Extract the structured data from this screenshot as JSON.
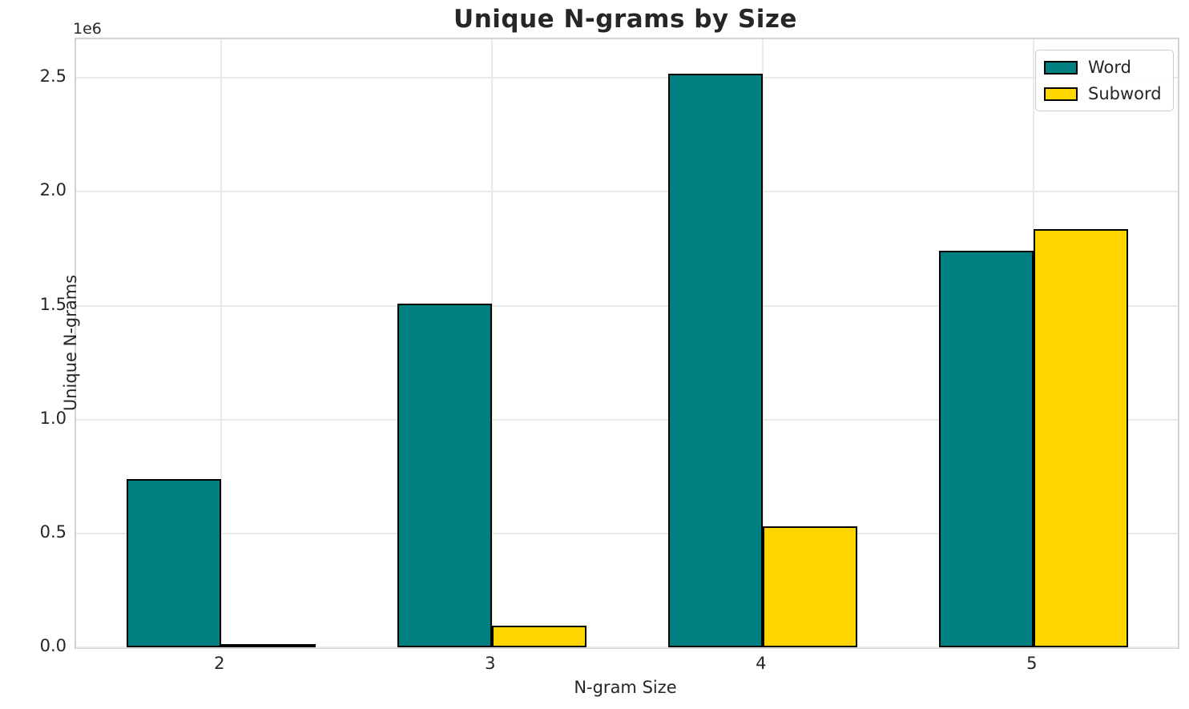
{
  "figure": {
    "title": "Unique N-grams by Size",
    "y_multiplier_label": "1e6"
  },
  "style": {
    "background": "#FFFFFF",
    "text_color": "#262626",
    "grid_color": "#EAEAEA",
    "spine_color": "#D2D2D2",
    "bar_edge_color": "#000000"
  },
  "chart_data": {
    "type": "bar",
    "title": "Unique N-grams by Size",
    "xlabel": "N-gram Size",
    "ylabel": "Unique N-grams",
    "categories": [
      "2",
      "3",
      "4",
      "5"
    ],
    "x": [
      2,
      3,
      4,
      5
    ],
    "series": [
      {
        "name": "Word",
        "color": "#008080",
        "values": [
          740000,
          1510000,
          2520000,
          1740000
        ]
      },
      {
        "name": "Subword",
        "color": "#FFD700",
        "values": [
          15000,
          95000,
          530000,
          1835000
        ]
      }
    ],
    "bar_width": 0.35,
    "xlim": [
      1.465,
      5.533
    ],
    "ylim": [
      0,
      2670000
    ],
    "yticks": [
      0,
      500000,
      1000000,
      1500000,
      2000000,
      2500000
    ],
    "ytick_labels": [
      "0.0",
      "0.5",
      "1.0",
      "1.5",
      "2.0",
      "2.5"
    ],
    "y_multiplier_label": "1e6",
    "grid": true,
    "legend": {
      "position": "upper right",
      "entries": [
        "Word",
        "Subword"
      ]
    }
  }
}
